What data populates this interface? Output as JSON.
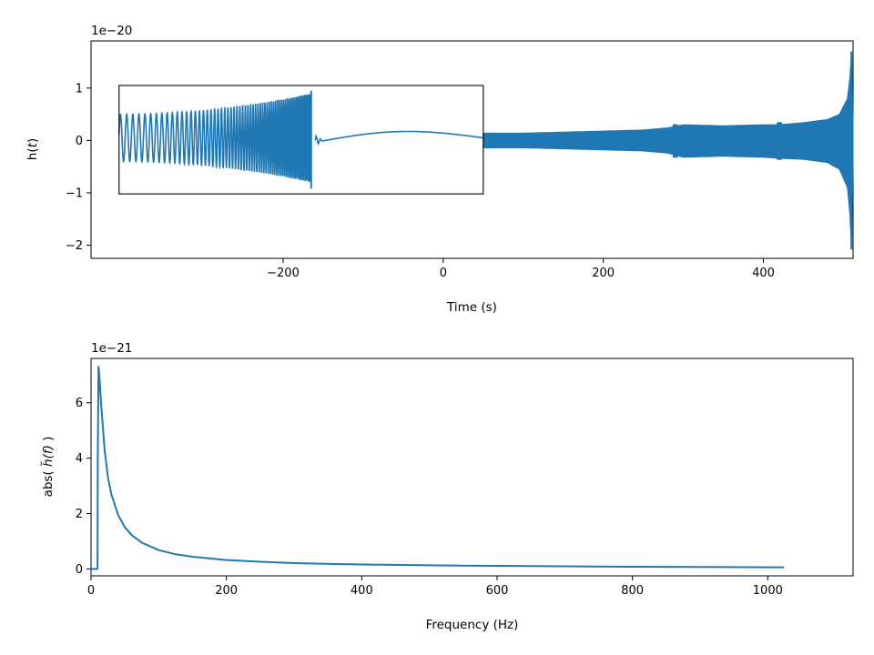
{
  "chart_data": [
    {
      "type": "line",
      "id": "time-domain",
      "title": "",
      "xlabel": "Time (s)",
      "ylabel_plain": "h(",
      "ylabel_italic": "t",
      "ylabel_close": ")",
      "offset_text": "1e−20",
      "xlim": [
        -440,
        512
      ],
      "ylim": [
        -2.25,
        1.9
      ],
      "scale": 1e-20,
      "xticks": [
        -200,
        0,
        200,
        400
      ],
      "xtick_labels": [
        "−200",
        "0",
        "200",
        "400"
      ],
      "yticks": [
        -2,
        -1,
        0,
        1
      ],
      "ytick_labels": [
        "−2",
        "−1",
        "0",
        "1"
      ],
      "series": [
        {
          "color": "#1f77b4",
          "envelope": {
            "x": [
              50,
              100,
              150,
              200,
              250,
              280,
              300,
              350,
              400,
              420,
              450,
              480,
              495,
              505,
              508,
              510,
              512
            ],
            "upper": [
              0.14,
              0.14,
              0.16,
              0.18,
              0.2,
              0.24,
              0.3,
              0.28,
              0.3,
              0.3,
              0.34,
              0.4,
              0.5,
              0.8,
              1.2,
              1.7,
              0.4
            ],
            "lower": [
              -0.14,
              -0.14,
              -0.16,
              -0.18,
              -0.2,
              -0.24,
              -0.32,
              -0.3,
              -0.32,
              -0.34,
              -0.36,
              -0.42,
              -0.55,
              -0.9,
              -1.4,
              -2.08,
              -0.4
            ]
          },
          "features": [
            {
              "x": 290,
              "upper": 0.3,
              "lower": -0.32
            },
            {
              "x": 420,
              "upper": 0.34,
              "lower": -0.36
            }
          ]
        }
      ],
      "inset": {
        "xlim_box": [
          -405,
          50
        ],
        "ylim_box": [
          -1.02,
          1.05
        ],
        "signal": {
          "chirp_x": [
            -405,
            -165
          ],
          "amplitude": [
            0.45,
            0.85
          ],
          "tail_x": [
            -160,
            50
          ],
          "tail_peak": 0.15
        }
      }
    },
    {
      "type": "line",
      "id": "frequency-domain",
      "title": "",
      "xlabel": "Frequency (Hz)",
      "ylabel_plain_pre": "abs( ",
      "ylabel_italic": "h̃(f)",
      "ylabel_plain_post": " )",
      "offset_text": "1e−21",
      "xlim": [
        0,
        1126
      ],
      "ylim": [
        -0.25,
        7.6
      ],
      "scale": 1e-21,
      "xticks": [
        0,
        200,
        400,
        600,
        800,
        1000
      ],
      "xtick_labels": [
        "0",
        "200",
        "400",
        "600",
        "800",
        "1000"
      ],
      "yticks": [
        0,
        2,
        4,
        6
      ],
      "ytick_labels": [
        "0",
        "2",
        "4",
        "6"
      ],
      "series": [
        {
          "color": "#1f77b4",
          "x": [
            0,
            9,
            9.5,
            10,
            11,
            12,
            14,
            16,
            20,
            25,
            30,
            40,
            50,
            60,
            75,
            100,
            125,
            150,
            200,
            250,
            300,
            400,
            500,
            600,
            700,
            800,
            900,
            1024
          ],
          "y": [
            0,
            0,
            0,
            4.0,
            7.3,
            7.1,
            6.3,
            5.6,
            4.3,
            3.3,
            2.7,
            1.95,
            1.5,
            1.22,
            0.95,
            0.68,
            0.53,
            0.44,
            0.32,
            0.26,
            0.21,
            0.16,
            0.13,
            0.11,
            0.095,
            0.08,
            0.07,
            0.06
          ]
        }
      ]
    }
  ]
}
